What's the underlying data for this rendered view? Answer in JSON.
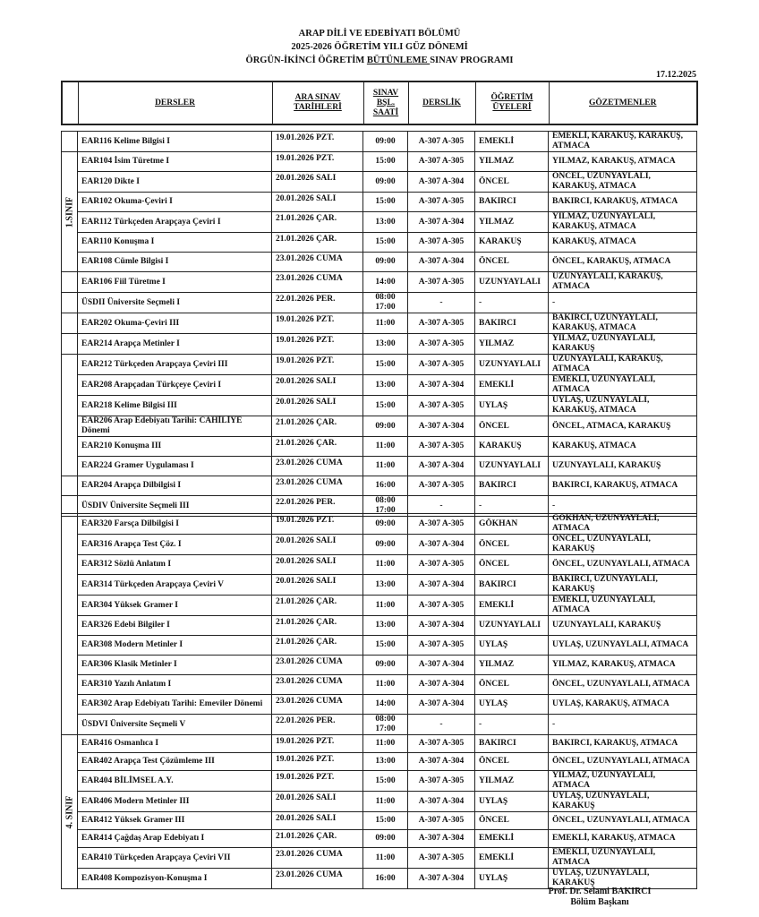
{
  "header": {
    "line1": "ARAP DİLİ VE EDEBİYATI BÖLÜMÜ",
    "line2": "2025-2026 ÖĞRETİM YILI GÜZ DÖNEMİ",
    "line3_pre": "ÖRGÜN-İKİNCİ ÖĞRETİM ",
    "line3_underlined": "BÜTÜNLEME ",
    "line3_post": "SINAV PROGRAMI",
    "date": "17.12.2025"
  },
  "columns": {
    "courses": "DERSLER",
    "dates": "ARA SINAV TARİHLERİ",
    "start": "SINAV BŞL. SAATİ",
    "room": "DERSLİK",
    "lecturer": "ÖĞRETİM ÜYELERİ",
    "proctors": "GÖZETMENLER"
  },
  "groups": [
    {
      "label": "1.SINIF",
      "rows": [
        [
          "EAR116 Kelime Bilgisi I",
          "19.01.2026 PZT.",
          "09:00",
          "A-307 A-305",
          "EMEKLİ",
          "EMEKLİ, KARAKUŞ, KARAKUŞ, ATMACA"
        ],
        [
          "EAR104 İsim Türetme I",
          "19.01.2026 PZT.",
          "15:00",
          "A-307 A-305",
          "YILMAZ",
          "YILMAZ, KARAKUŞ, ATMACA"
        ],
        [
          "EAR120 Dikte I",
          "20.01.2026 SALI",
          "09:00",
          "A-307 A-304",
          "ÖNCEL",
          "ÖNCEL, UZUNYAYLALI, KARAKUŞ, ATMACA"
        ],
        [
          "EAR102 Okuma-Çeviri I",
          "20.01.2026 SALI",
          "15:00",
          "A-307 A-305",
          "BAKIRCI",
          "BAKIRCI, KARAKUŞ, ATMACA"
        ],
        [
          "EAR112 Türkçeden Arapçaya Çeviri I",
          "21.01.2026 ÇAR.",
          "13:00",
          "A-307 A-304",
          "YILMAZ",
          "YILMAZ, UZUNYAYLALI, KARAKUŞ, ATMACA"
        ],
        [
          "EAR110 Konuşma I",
          "21.01.2026 ÇAR.",
          "15:00",
          "A-307 A-305",
          "KARAKUŞ",
          "KARAKUŞ, ATMACA"
        ],
        [
          "EAR108 Cümle Bilgisi I",
          "23.01.2026 CUMA",
          "09:00",
          "A-307 A-304",
          "ÖNCEL",
          "ÖNCEL, KARAKUŞ, ATMACA"
        ],
        [
          "EAR106 Fiil Türetme I",
          "23.01.2026 CUMA",
          "14:00",
          "A-307 A-305",
          "UZUNYAYLALI",
          "UZUNYAYLALI, KARAKUŞ, ATMACA"
        ],
        [
          "ÜSDII Üniversite Seçmeli I",
          "22.01.2026 PER.",
          "08:00 17:00",
          "-",
          "-",
          "-"
        ]
      ]
    },
    {
      "label": "",
      "rows": [
        [
          "EAR202 Okuma-Çeviri III",
          "19.01.2026 PZT.",
          "11:00",
          "A-307 A-305",
          "BAKIRCI",
          "BAKIRCI, UZUNYAYLALI, KARAKUŞ, ATMACA"
        ],
        [
          "EAR214 Arapça Metinler I",
          "19.01.2026 PZT.",
          "13:00",
          "A-307 A-305",
          "YILMAZ",
          "YILMAZ, UZUNYAYLALI, KARAKUŞ"
        ],
        [
          "EAR212 Türkçeden Arapçaya Çeviri III",
          "19.01.2026 PZT.",
          "15:00",
          "A-307 A-305",
          "UZUNYAYLALI",
          "UZUNYAYLALI, KARAKUŞ, ATMACA"
        ],
        [
          "EAR208 Arapçadan Türkçeye Çeviri I",
          "20.01.2026 SALI",
          "13:00",
          "A-307 A-304",
          "EMEKLİ",
          "EMEKLİ, UZUNYAYLALI, ATMACA"
        ],
        [
          "EAR218 Kelime Bilgisi III",
          "20.01.2026 SALI",
          "15:00",
          "A-307 A-305",
          "UYLAŞ",
          "UYLAŞ, UZUNYAYLALI, KARAKUŞ, ATMACA"
        ],
        [
          "EAR206 Arap Edebiyatı Tarihi: CAHİLİYE Dönemi",
          "21.01.2026 ÇAR.",
          "09:00",
          "A-307 A-304",
          "ÖNCEL",
          "ÖNCEL, ATMACA, KARAKUŞ"
        ],
        [
          "EAR210 Konuşma III",
          "21.01.2026 ÇAR.",
          "11:00",
          "A-307 A-305",
          "KARAKUŞ",
          "KARAKUŞ, ATMACA"
        ],
        [
          "EAR224 Gramer Uygulaması I",
          "23.01.2026 CUMA",
          "11:00",
          "A-307 A-304",
          "UZUNYAYLALI",
          "UZUNYAYLALI, KARAKUŞ"
        ],
        [
          "EAR204 Arapça Dilbilgisi I",
          "23.01.2026 CUMA",
          "16:00",
          "A-307 A-305",
          "BAKIRCI",
          "BAKIRCI, KARAKUŞ, ATMACA"
        ],
        [
          "ÜSDIV Üniversite Seçmeli III",
          "22.01.2026 PER.",
          "08:00 17:00",
          "-",
          "-",
          "-"
        ]
      ]
    },
    {
      "label": "",
      "rows": [
        [
          "EAR320 Farsça Dilbilgisi I",
          "19.01.2026 PZT.",
          "09:00",
          "A-307 A-305",
          "GÖKHAN",
          "GÖKHAN, UZUNYAYLALI, ATMACA"
        ],
        [
          "EAR316 Arapça Test Çöz. I",
          "20.01.2026 SALI",
          "09:00",
          "A-307 A-304",
          "ÖNCEL",
          "ÖNCEL, UZUNYAYLALI, KARAKUŞ"
        ],
        [
          "EAR312 Sözlü Anlatım I",
          "20.01.2026 SALI",
          "11:00",
          "A-307 A-305",
          "ÖNCEL",
          "ÖNCEL, UZUNYAYLALI, ATMACA"
        ],
        [
          "EAR314 Türkçeden Arapçaya Çeviri V",
          "20.01.2026 SALI",
          "13:00",
          "A-307 A-304",
          "BAKIRCI",
          "BAKIRCI, UZUNYAYLALI, KARAKUŞ"
        ],
        [
          "EAR304 Yüksek Gramer I",
          "21.01.2026 ÇAR.",
          "11:00",
          "A-307 A-305",
          "EMEKLİ",
          "EMEKLİ, UZUNYAYLALI, ATMACA"
        ],
        [
          "EAR326 Edebi Bilgiler I",
          "21.01.2026 ÇAR.",
          "13:00",
          "A-307 A-304",
          "UZUNYAYLALI",
          "UZUNYAYLALI, KARAKUŞ"
        ],
        [
          "EAR308 Modern Metinler I",
          "21.01.2026 ÇAR.",
          "15:00",
          "A-307 A-305",
          "UYLAŞ",
          "UYLAŞ, UZUNYAYLALI, ATMACA"
        ],
        [
          "EAR306 Klasik Metinler I",
          "23.01.2026 CUMA",
          "09:00",
          "A-307 A-304",
          "YILMAZ",
          "YILMAZ, KARAKUŞ, ATMACA"
        ],
        [
          "EAR310 Yazılı Anlatım I",
          "23.01.2026 CUMA",
          "11:00",
          "A-307 A-304",
          "ÖNCEL",
          "ÖNCEL, UZUNYAYLALI, ATMACA"
        ],
        [
          "EAR302 Arap Edebiyatı Tarihi: Emeviler Dönemi",
          "23.01.2026 CUMA",
          "14:00",
          "A-307 A-304",
          "UYLAŞ",
          "UYLAŞ, KARAKUŞ, ATMACA"
        ],
        [
          "ÜSDVI Üniversite Seçmeli V",
          "22.01.2026 PER.",
          "08:00 17:00",
          "-",
          "-",
          "-"
        ]
      ]
    },
    {
      "label": "4. SINIF",
      "rows": [
        [
          "EAR416 Osmanlıca I",
          "19.01.2026 PZT.",
          "11:00",
          "A-307 A-305",
          "BAKIRCI",
          "BAKIRCI, KARAKUŞ, ATMACA"
        ],
        [
          "EAR402 Arapça Test Çözümleme III",
          "19.01.2026 PZT.",
          "13:00",
          "A-307 A-304",
          "ÖNCEL",
          "ÖNCEL, UZUNYAYLALI, ATMACA"
        ],
        [
          "EAR404 BİLİMSEL A.Y.",
          "19.01.2026 PZT.",
          "15:00",
          "A-307 A-305",
          "YILMAZ",
          "YILMAZ, UZUNYAYLALI, ATMACA"
        ],
        [
          "EAR406 Modern Metinler III",
          "20.01.2026 SALI",
          "11:00",
          "A-307 A-304",
          "UYLAŞ",
          "UYLAŞ, UZUNYAYLALI, KARAKUŞ"
        ],
        [
          "EAR412 Yüksek Gramer III",
          "20.01.2026 SALI",
          "15:00",
          "A-307 A-305",
          "ÖNCEL",
          "ÖNCEL, UZUNYAYLALI, ATMACA"
        ],
        [
          "EAR414 Çağdaş Arap Edebiyatı I",
          "21.01.2026 ÇAR.",
          "09:00",
          "A-307 A-304",
          "EMEKLİ",
          "EMEKLİ, KARAKUŞ, ATMACA"
        ],
        [
          "EAR410 Türkçeden Arapçaya Çeviri VII",
          "23.01.2026 CUMA",
          "11:00",
          "A-307 A-305",
          "EMEKLİ",
          "EMEKLİ, UZUNYAYLALI, ATMACA"
        ],
        [
          "EAR408 Kompozisyon-Konuşma I",
          "23.01.2026 CUMA",
          "16:00",
          "A-307 A-304",
          "UYLAŞ",
          "UYLAŞ, UZUNYAYLALI, KARAKUŞ"
        ]
      ]
    }
  ],
  "signature": {
    "name": "Prof. Dr. Selami BAKIRCI",
    "title": "Bölüm Başkanı"
  }
}
